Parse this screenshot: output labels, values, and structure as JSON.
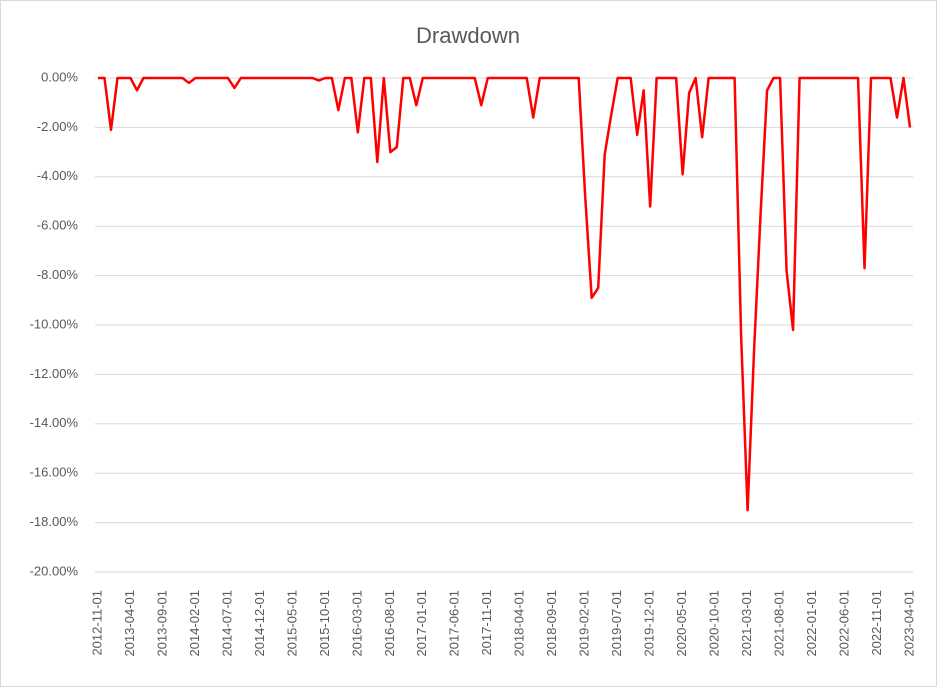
{
  "chart_data": {
    "type": "line",
    "title": "Drawdown",
    "categories": [
      "2012-11-01",
      null,
      null,
      null,
      null,
      "2013-04-01",
      null,
      null,
      null,
      null,
      "2013-09-01",
      null,
      null,
      null,
      null,
      "2014-02-01",
      null,
      null,
      null,
      null,
      "2014-07-01",
      null,
      null,
      null,
      null,
      "2014-12-01",
      null,
      null,
      null,
      null,
      "2015-05-01",
      null,
      null,
      null,
      null,
      "2015-10-01",
      null,
      null,
      null,
      null,
      "2016-03-01",
      null,
      null,
      null,
      null,
      "2016-08-01",
      null,
      null,
      null,
      null,
      "2017-01-01",
      null,
      null,
      null,
      null,
      "2017-06-01",
      null,
      null,
      null,
      null,
      "2017-11-01",
      null,
      null,
      null,
      null,
      "2018-04-01",
      null,
      null,
      null,
      null,
      "2018-09-01",
      null,
      null,
      null,
      null,
      "2019-02-01",
      null,
      null,
      null,
      null,
      "2019-07-01",
      null,
      null,
      null,
      null,
      "2019-12-01",
      null,
      null,
      null,
      null,
      "2020-05-01",
      null,
      null,
      null,
      null,
      "2020-10-01",
      null,
      null,
      null,
      null,
      "2021-03-01",
      null,
      null,
      null,
      null,
      "2021-08-01",
      null,
      null,
      null,
      null,
      "2022-01-01",
      null,
      null,
      null,
      null,
      "2022-06-01",
      null,
      null,
      null,
      null,
      "2022-11-01",
      null,
      null,
      null,
      null,
      "2023-04-01"
    ],
    "series": [
      {
        "name": "Drawdown",
        "color": "#ff0000",
        "values": [
          0,
          0,
          -2.1,
          0,
          0,
          0,
          -0.5,
          0,
          0,
          0,
          0,
          0,
          0,
          0,
          -0.2,
          0,
          0,
          0,
          0,
          0,
          0,
          -0.4,
          0,
          0,
          0,
          0,
          0,
          0,
          0,
          0,
          0,
          0,
          0,
          0,
          -0.1,
          0,
          0,
          -1.3,
          0,
          0,
          -2.2,
          0,
          0,
          -3.4,
          0,
          -3.0,
          -2.8,
          0,
          0,
          -1.1,
          0,
          0,
          0,
          0,
          0,
          0,
          0,
          0,
          0,
          -1.1,
          0,
          0,
          0,
          0,
          0,
          0,
          0,
          -1.6,
          0,
          0,
          0,
          0,
          0,
          0,
          0,
          -4.8,
          -8.9,
          -8.5,
          -3.1,
          -1.5,
          0,
          0,
          0,
          -2.3,
          -0.5,
          -5.2,
          0,
          0,
          0,
          0,
          -3.9,
          -0.6,
          0,
          -2.4,
          0,
          0,
          0,
          0,
          0,
          -10.4,
          -17.5,
          -11,
          -5.5,
          -0.5,
          0,
          0,
          -7.8,
          -10.2,
          0,
          0,
          0,
          0,
          0,
          0,
          0,
          0,
          0,
          0,
          -7.7,
          0,
          0,
          0,
          0,
          -1.6,
          0,
          -2.0
        ]
      }
    ],
    "ylim": [
      -20,
      0
    ],
    "yticks": [
      {
        "value": 0,
        "label": "0.00%"
      },
      {
        "value": -2,
        "label": "-2.00%"
      },
      {
        "value": -4,
        "label": "-4.00%"
      },
      {
        "value": -6,
        "label": "-6.00%"
      },
      {
        "value": -8,
        "label": "-8.00%"
      },
      {
        "value": -10,
        "label": "-10.00%"
      },
      {
        "value": -12,
        "label": "-12.00%"
      },
      {
        "value": -14,
        "label": "-14.00%"
      },
      {
        "value": -16,
        "label": "-16.00%"
      },
      {
        "value": -18,
        "label": "-18.00%"
      },
      {
        "value": -20,
        "label": "-20.00%"
      }
    ],
    "grid": true
  }
}
